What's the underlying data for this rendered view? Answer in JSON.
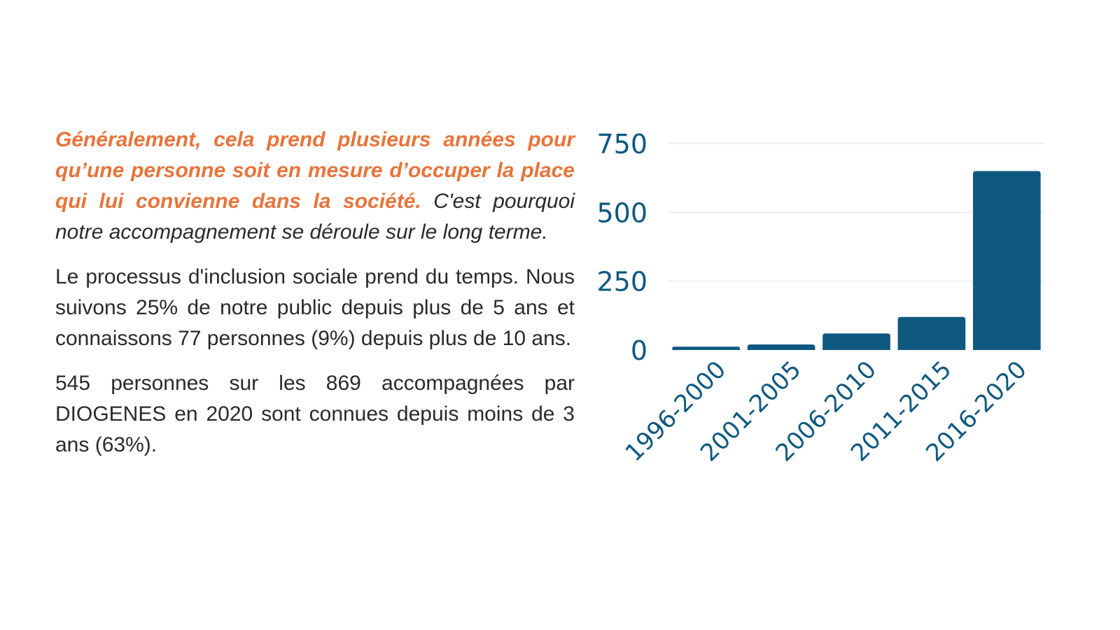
{
  "text": {
    "p1_highlight": "Généralement, cela prend plusieurs années pour qu’une personne soit en mesure d’occuper la place qui lui convienne dans la société.",
    "p1_rest": " C'est pourquoi notre accompagnement se déroule sur le long terme.",
    "p2": "Le processus d'inclusion sociale prend du temps. Nous suivons 25% de notre public depuis plus de 5 ans et connaissons 77 personnes (9%) depuis plus de 10 ans.",
    "p3": "545 personnes sur les 869 accompagnées par DIOGENES en 2020 sont connues depuis moins de 3 ans (63%)."
  },
  "colors": {
    "accent": "#e8743b",
    "bar": "#0f5880",
    "tick": "#0f5880",
    "grid": "#d6e4ea",
    "text": "#2a2a2a"
  },
  "chart_data": {
    "type": "bar",
    "categories": [
      "1996-2000",
      "2001-2005",
      "2006-2010",
      "2011-2015",
      "2016-2020"
    ],
    "values": [
      12,
      20,
      60,
      120,
      650
    ],
    "title": "",
    "xlabel": "",
    "ylabel": "",
    "ylim": [
      0,
      750
    ],
    "yticks": [
      0,
      250,
      500,
      750
    ],
    "grid": true,
    "legend": "none"
  }
}
